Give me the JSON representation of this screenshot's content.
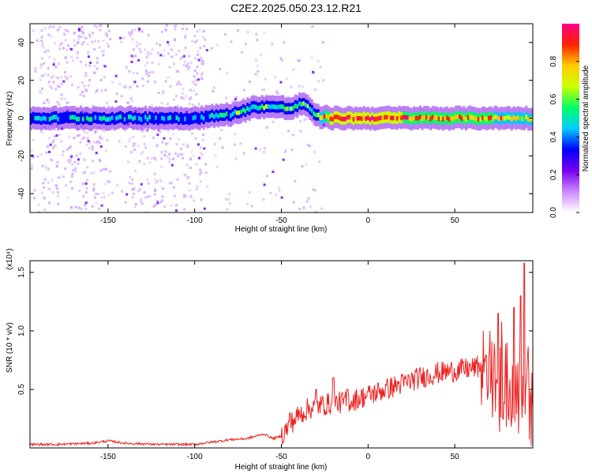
{
  "title": "C2E2.2025.050.23.12.R21",
  "chart_data": [
    {
      "type": "heatmap",
      "xlabel": "Height of straight line (km)",
      "ylabel": "Frequency (Hz)",
      "xlim": [
        -195,
        95
      ],
      "ylim": [
        -50,
        50
      ],
      "xticks": [
        -150,
        -100,
        -50,
        0,
        50
      ],
      "yticks": [
        -40,
        -20,
        0,
        20,
        40
      ],
      "colorbar": {
        "label": "Normalized spectral amplitude",
        "range": [
          0,
          1
        ],
        "ticks": [
          "0.0",
          "0.2",
          "0.4",
          "0.6",
          "0.8"
        ],
        "colors": [
          "#ffffff",
          "#cc88ff",
          "#7700ee",
          "#0000ff",
          "#00ccff",
          "#00ff66",
          "#ccff00",
          "#ffcc00",
          "#ff2200",
          "#ff0088"
        ]
      },
      "ridge": {
        "description": "Strong signal band centered near 0 Hz, rising to ~8 Hz near -40 km before returning to 0 Hz",
        "x": [
          -195,
          -150,
          -100,
          -80,
          -65,
          -55,
          -45,
          -38,
          -30,
          -20,
          0,
          50,
          95
        ],
        "y": [
          0,
          0,
          0,
          2,
          6,
          6,
          5,
          8,
          1,
          0,
          0,
          0,
          0
        ],
        "amplitude": [
          0.4,
          0.45,
          0.4,
          0.5,
          0.55,
          0.55,
          0.6,
          0.55,
          0.6,
          0.95,
          0.9,
          0.8,
          0.7
        ]
      }
    },
    {
      "type": "line",
      "xlabel": "Height of straight line (km)",
      "ylabel": "SNR (10 * v/v)",
      "scale_label": "(x10⁴)",
      "xlim": [
        -195,
        95
      ],
      "ylim": [
        0,
        1.6
      ],
      "xticks": [
        -150,
        -100,
        -50,
        0,
        50
      ],
      "yticks": [
        0.5,
        1.0,
        1.5
      ],
      "yticklabels": [
        "0.5",
        "1.0",
        "1.5"
      ],
      "color": "#ee2222",
      "series": [
        {
          "x": [
            -195,
            -180,
            -160,
            -150,
            -140,
            -120,
            -100,
            -90,
            -80,
            -70,
            -60,
            -55,
            -50,
            -45,
            -40,
            -35,
            -30,
            -20,
            -10,
            0,
            10,
            20,
            30,
            40,
            50,
            55,
            60,
            65,
            70,
            75,
            80,
            85,
            90,
            95
          ],
          "y": [
            0.03,
            0.03,
            0.04,
            0.06,
            0.04,
            0.03,
            0.03,
            0.05,
            0.07,
            0.08,
            0.12,
            0.08,
            0.1,
            0.2,
            0.28,
            0.33,
            0.36,
            0.38,
            0.4,
            0.45,
            0.5,
            0.55,
            0.6,
            0.64,
            0.66,
            0.67,
            0.68,
            0.7,
            0.55,
            0.6,
            0.55,
            0.5,
            0.55,
            0.35
          ]
        }
      ],
      "peaks": {
        "x": [
          -45,
          -30,
          -20,
          -12,
          70,
          75,
          80,
          84,
          88,
          90
        ],
        "y": [
          0.3,
          0.5,
          0.6,
          0.5,
          1.0,
          1.15,
          0.9,
          1.2,
          1.3,
          1.58
        ]
      }
    }
  ]
}
